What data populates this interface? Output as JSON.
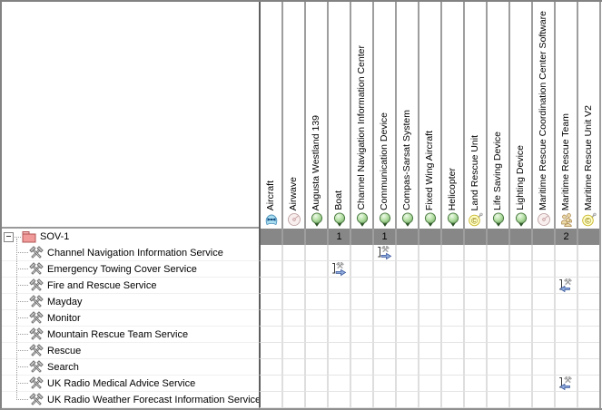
{
  "matrix": {
    "root": {
      "label": "SOV-1",
      "icon": "package-icon"
    },
    "columns": [
      {
        "label": "Aircraft",
        "icon": "aircraft-icon",
        "count": ""
      },
      {
        "label": "Airwave",
        "icon": "disc-icon",
        "count": ""
      },
      {
        "label": "Augusta Westland 139",
        "icon": "capability-icon",
        "count": ""
      },
      {
        "label": "Boat",
        "icon": "capability-icon",
        "count": "1"
      },
      {
        "label": "Channel Navigation Information Center",
        "icon": "capability-icon",
        "count": ""
      },
      {
        "label": "Communication Device",
        "icon": "capability-icon",
        "count": "1"
      },
      {
        "label": "Compas-Sarsat System",
        "icon": "capability-icon",
        "count": ""
      },
      {
        "label": "Fixed Wing Aircraft",
        "icon": "capability-icon",
        "count": ""
      },
      {
        "label": "Helicopter",
        "icon": "capability-icon",
        "count": ""
      },
      {
        "label": "Land Rescue Unit",
        "icon": "resource-icon",
        "count": ""
      },
      {
        "label": "Life Saving Device",
        "icon": "capability-icon",
        "count": ""
      },
      {
        "label": "Lighting Device",
        "icon": "capability-icon",
        "count": ""
      },
      {
        "label": "Maritime Rescue Coordination Center Software",
        "icon": "disc-icon",
        "count": ""
      },
      {
        "label": "Maritime Rescue Team",
        "icon": "team-icon",
        "count": "2"
      },
      {
        "label": "Maritime Rescue Unit V2",
        "icon": "resource-icon",
        "count": ""
      }
    ],
    "rows": [
      {
        "label": "Channel Navigation Information Service",
        "icon": "operation-icon"
      },
      {
        "label": "Emergency Towing Cover Service",
        "icon": "operation-icon"
      },
      {
        "label": "Fire and Rescue Service",
        "icon": "operation-icon"
      },
      {
        "label": "Mayday",
        "icon": "operation-icon"
      },
      {
        "label": "Monitor",
        "icon": "operation-icon"
      },
      {
        "label": "Mountain Rescue Team Service",
        "icon": "operation-icon"
      },
      {
        "label": "Rescue",
        "icon": "operation-icon"
      },
      {
        "label": "Search",
        "icon": "operation-icon"
      },
      {
        "label": "UK Radio Medical Advice Service",
        "icon": "operation-icon"
      },
      {
        "label": "UK Radio Weather Forecast Information Service",
        "icon": "operation-icon"
      }
    ],
    "cells": [
      {
        "row": 0,
        "col": 5,
        "relation": "rel-right-icon"
      },
      {
        "row": 1,
        "col": 3,
        "relation": "rel-right-icon"
      },
      {
        "row": 2,
        "col": 13,
        "relation": "rel-left-icon"
      },
      {
        "row": 8,
        "col": 13,
        "relation": "rel-left-icon"
      }
    ],
    "colors": {
      "summary_row_bg": "#878787",
      "capability_green": "#8fc57f",
      "package_red": "#f09a9a",
      "relation_arrow_blue": "#8fabdc",
      "resource_yellow": "#ffffc8",
      "team_tan": "#ecd9a8",
      "aircraft_blue": "#a8dcf0"
    }
  }
}
